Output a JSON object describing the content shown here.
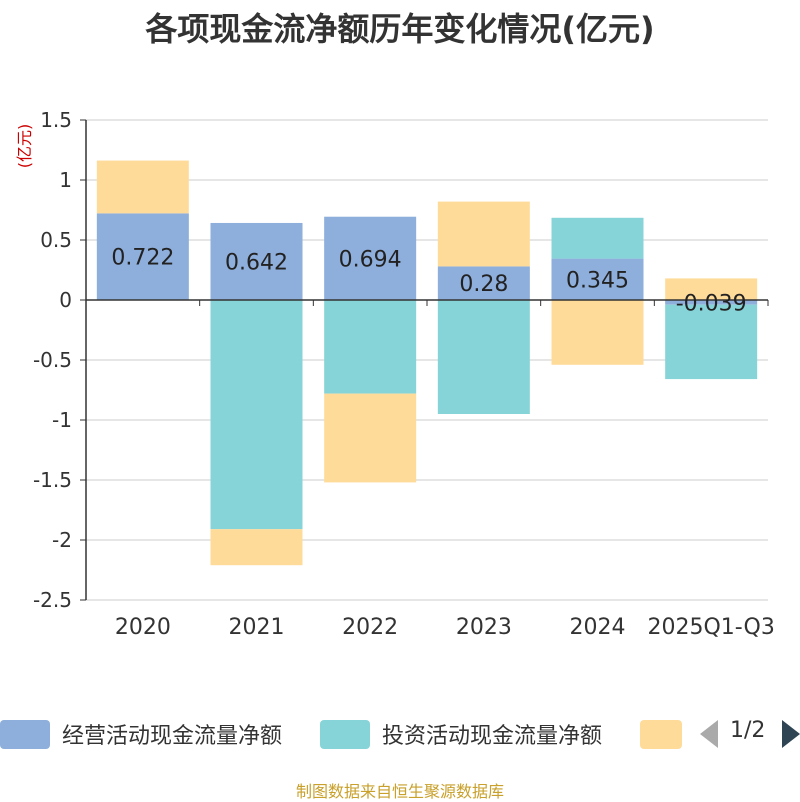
{
  "title": "各项现金流净额历年变化情况(亿元)",
  "source": "制图数据来自恒生聚源数据库",
  "legend": {
    "items": [
      {
        "label": "经营活动现金流量净额",
        "color": "#8eaedb"
      },
      {
        "label": "投资活动现金流量净额",
        "color": "#86d4d8"
      },
      {
        "label": "",
        "color": "#ffdb9a"
      }
    ],
    "page": "1/2"
  },
  "chart_data": {
    "type": "bar",
    "stacked": true,
    "title": "各项现金流净额历年变化情况(亿元)",
    "ylabel": "(亿元)",
    "xlabel": "",
    "ylim": [
      -2.5,
      1.5
    ],
    "yticks": [
      1.5,
      1,
      0.5,
      0,
      -0.5,
      -1,
      -1.5,
      -2,
      -2.5
    ],
    "ytick_labels": [
      "1.5",
      "1",
      "0.5",
      "0",
      "-0.5",
      "-1",
      "-1.5",
      "-2",
      "-2.5"
    ],
    "categories": [
      "2020",
      "2021",
      "2022",
      "2023",
      "2024",
      "2025Q1-Q3"
    ],
    "series": [
      {
        "name": "经营活动现金流量净额",
        "color": "#8eaedb",
        "values": [
          0.722,
          0.642,
          0.694,
          0.28,
          0.345,
          -0.039
        ],
        "value_labels": [
          "0.722",
          "0.642",
          "0.694",
          "0.28",
          "0.345",
          "-0.039"
        ]
      },
      {
        "name": "投资活动现金流量净额",
        "color": "#86d4d8",
        "values": [
          0,
          -1.91,
          -0.78,
          -0.95,
          0.34,
          -0.62
        ]
      },
      {
        "name": "",
        "color": "#ffdb9a",
        "values": [
          0.44,
          -0.3,
          -0.74,
          0.54,
          -0.54,
          0.18
        ]
      }
    ]
  }
}
